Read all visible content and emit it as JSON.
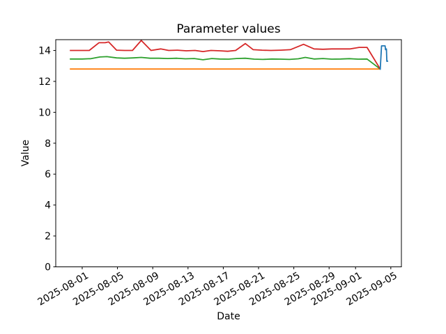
{
  "chart_data": {
    "type": "line",
    "title": "Parameter values",
    "xlabel": "Date",
    "ylabel": "Value",
    "x_unit": "days_since_2025-08-01",
    "xlim": [
      -3.0,
      36.2
    ],
    "ylim": [
      0,
      14.7
    ],
    "grid": false,
    "legend_visible": false,
    "x_ticks": [
      {
        "label": "2025-08-01",
        "x": 0
      },
      {
        "label": "2025-08-05",
        "x": 4
      },
      {
        "label": "2025-08-09",
        "x": 8
      },
      {
        "label": "2025-08-13",
        "x": 12
      },
      {
        "label": "2025-08-17",
        "x": 16
      },
      {
        "label": "2025-08-21",
        "x": 20
      },
      {
        "label": "2025-08-25",
        "x": 24
      },
      {
        "label": "2025-08-29",
        "x": 28
      },
      {
        "label": "2025-09-01",
        "x": 31
      },
      {
        "label": "2025-09-05",
        "x": 35
      }
    ],
    "y_ticks": [
      {
        "label": "0",
        "v": 0
      },
      {
        "label": "2",
        "v": 2
      },
      {
        "label": "4",
        "v": 4
      },
      {
        "label": "6",
        "v": 6
      },
      {
        "label": "8",
        "v": 8
      },
      {
        "label": "10",
        "v": 10
      },
      {
        "label": "12",
        "v": 12
      },
      {
        "label": "14",
        "v": 14
      }
    ],
    "series": [
      {
        "name": "orange",
        "color": "#ff7f0e",
        "points": [
          [
            -1.4,
            12.8
          ],
          [
            5,
            12.8
          ],
          [
            10,
            12.8
          ],
          [
            15,
            12.8
          ],
          [
            20,
            12.8
          ],
          [
            25,
            12.8
          ],
          [
            30,
            12.8
          ],
          [
            33.8,
            12.8
          ]
        ]
      },
      {
        "name": "green",
        "color": "#2ca02c",
        "points": [
          [
            -1.4,
            13.45
          ],
          [
            0,
            13.45
          ],
          [
            1,
            13.47
          ],
          [
            2,
            13.58
          ],
          [
            2.8,
            13.6
          ],
          [
            3.9,
            13.52
          ],
          [
            4.8,
            13.5
          ],
          [
            5.8,
            13.52
          ],
          [
            6.7,
            13.55
          ],
          [
            7.7,
            13.5
          ],
          [
            8.7,
            13.5
          ],
          [
            9.7,
            13.48
          ],
          [
            10.7,
            13.5
          ],
          [
            11.7,
            13.46
          ],
          [
            12.7,
            13.48
          ],
          [
            13.7,
            13.4
          ],
          [
            14.7,
            13.48
          ],
          [
            15.6,
            13.45
          ],
          [
            16.6,
            13.44
          ],
          [
            17.5,
            13.48
          ],
          [
            18.5,
            13.5
          ],
          [
            19.5,
            13.44
          ],
          [
            20.5,
            13.42
          ],
          [
            21.5,
            13.45
          ],
          [
            22.5,
            13.44
          ],
          [
            23.5,
            13.42
          ],
          [
            24.5,
            13.46
          ],
          [
            25.3,
            13.55
          ],
          [
            26.3,
            13.45
          ],
          [
            27.3,
            13.48
          ],
          [
            28.3,
            13.44
          ],
          [
            29.3,
            13.45
          ],
          [
            30.3,
            13.47
          ],
          [
            31.3,
            13.44
          ],
          [
            32.3,
            13.45
          ],
          [
            33.8,
            12.8
          ]
        ]
      },
      {
        "name": "red",
        "color": "#d62728",
        "points": [
          [
            -1.4,
            14.0
          ],
          [
            0,
            14.0
          ],
          [
            0.8,
            14.0
          ],
          [
            1.9,
            14.5
          ],
          [
            2.6,
            14.5
          ],
          [
            3.0,
            14.55
          ],
          [
            3.9,
            14.02
          ],
          [
            4.8,
            14.0
          ],
          [
            5.7,
            14.0
          ],
          [
            6.7,
            14.65
          ],
          [
            7.8,
            14.0
          ],
          [
            8.9,
            14.1
          ],
          [
            9.8,
            14.0
          ],
          [
            10.8,
            14.02
          ],
          [
            11.8,
            13.98
          ],
          [
            12.8,
            14.0
          ],
          [
            13.7,
            13.93
          ],
          [
            14.6,
            14.0
          ],
          [
            15.6,
            13.98
          ],
          [
            16.5,
            13.95
          ],
          [
            17.4,
            14.0
          ],
          [
            18.5,
            14.45
          ],
          [
            19.4,
            14.05
          ],
          [
            20.4,
            14.02
          ],
          [
            21.4,
            14.0
          ],
          [
            22.5,
            14.02
          ],
          [
            23.6,
            14.05
          ],
          [
            25.1,
            14.4
          ],
          [
            26.3,
            14.1
          ],
          [
            27.3,
            14.08
          ],
          [
            28.3,
            14.1
          ],
          [
            29.3,
            14.1
          ],
          [
            30.4,
            14.1
          ],
          [
            31.4,
            14.2
          ],
          [
            32.3,
            14.2
          ],
          [
            33.8,
            12.8
          ]
        ]
      },
      {
        "name": "blue",
        "color": "#1f77b4",
        "points": [
          [
            33.8,
            12.75
          ],
          [
            33.95,
            14.3
          ],
          [
            34.35,
            14.3
          ],
          [
            34.4,
            14.05
          ],
          [
            34.5,
            14.1
          ],
          [
            34.55,
            13.3
          ],
          [
            34.7,
            13.32
          ]
        ]
      }
    ]
  }
}
